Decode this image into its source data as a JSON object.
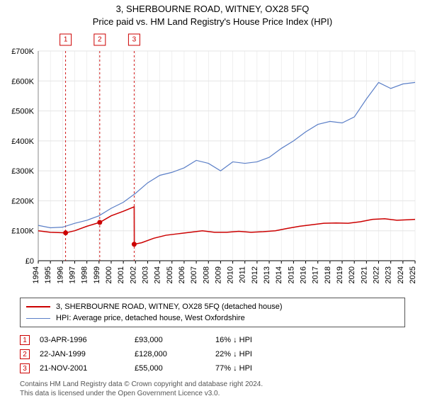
{
  "title": {
    "line1": "3, SHERBOURNE ROAD, WITNEY, OX28 5FQ",
    "line2": "Price paid vs. HM Land Registry's House Price Index (HPI)"
  },
  "chart": {
    "type": "line",
    "background_color": "#ffffff",
    "grid_color": "#e5e5e5",
    "axis_color": "#000000",
    "ylim": [
      0,
      700000
    ],
    "ytick_step": 100000,
    "ytick_labels": [
      "£0",
      "£100K",
      "£200K",
      "£300K",
      "£400K",
      "£500K",
      "£600K",
      "£700K"
    ],
    "xlim": [
      1994,
      2025
    ],
    "xticks": [
      1994,
      1995,
      1996,
      1997,
      1998,
      1999,
      2000,
      2001,
      2002,
      2003,
      2004,
      2005,
      2006,
      2007,
      2008,
      2009,
      2010,
      2011,
      2012,
      2013,
      2014,
      2015,
      2016,
      2017,
      2018,
      2019,
      2020,
      2021,
      2022,
      2023,
      2024,
      2025
    ],
    "label_fontsize": 11,
    "series": [
      {
        "name": "3, SHERBOURNE ROAD, WITNEY, OX28 5FQ (detached house)",
        "color": "#cc0000",
        "line_width": 1.5,
        "points": [
          [
            1994.0,
            100000
          ],
          [
            1995.0,
            95000
          ],
          [
            1996.25,
            93000
          ],
          [
            1997.0,
            100000
          ],
          [
            1998.0,
            115000
          ],
          [
            1999.06,
            128000
          ],
          [
            2000.0,
            150000
          ],
          [
            2001.0,
            165000
          ],
          [
            2001.89,
            180000
          ],
          [
            2001.9,
            55000
          ],
          [
            2002.5,
            60000
          ],
          [
            2003.5,
            75000
          ],
          [
            2004.5,
            85000
          ],
          [
            2005.5,
            90000
          ],
          [
            2006.5,
            95000
          ],
          [
            2007.5,
            100000
          ],
          [
            2008.5,
            95000
          ],
          [
            2009.5,
            95000
          ],
          [
            2010.5,
            98000
          ],
          [
            2011.5,
            95000
          ],
          [
            2012.5,
            97000
          ],
          [
            2013.5,
            100000
          ],
          [
            2014.5,
            108000
          ],
          [
            2015.5,
            115000
          ],
          [
            2016.5,
            120000
          ],
          [
            2017.5,
            125000
          ],
          [
            2018.5,
            126000
          ],
          [
            2019.5,
            125000
          ],
          [
            2020.5,
            130000
          ],
          [
            2021.5,
            138000
          ],
          [
            2022.5,
            140000
          ],
          [
            2023.5,
            135000
          ],
          [
            2024.5,
            137000
          ],
          [
            2025.0,
            138000
          ]
        ]
      },
      {
        "name": "HPI: Average price, detached house, West Oxfordshire",
        "color": "#5b7fc7",
        "line_width": 1.2,
        "points": [
          [
            1994.0,
            118000
          ],
          [
            1995.0,
            110000
          ],
          [
            1996.0,
            112000
          ],
          [
            1997.0,
            125000
          ],
          [
            1998.0,
            135000
          ],
          [
            1999.0,
            150000
          ],
          [
            2000.0,
            175000
          ],
          [
            2001.0,
            195000
          ],
          [
            2002.0,
            225000
          ],
          [
            2003.0,
            260000
          ],
          [
            2004.0,
            285000
          ],
          [
            2005.0,
            295000
          ],
          [
            2006.0,
            310000
          ],
          [
            2007.0,
            335000
          ],
          [
            2008.0,
            325000
          ],
          [
            2009.0,
            300000
          ],
          [
            2010.0,
            330000
          ],
          [
            2011.0,
            325000
          ],
          [
            2012.0,
            330000
          ],
          [
            2013.0,
            345000
          ],
          [
            2014.0,
            375000
          ],
          [
            2015.0,
            400000
          ],
          [
            2016.0,
            430000
          ],
          [
            2017.0,
            455000
          ],
          [
            2018.0,
            465000
          ],
          [
            2019.0,
            460000
          ],
          [
            2020.0,
            480000
          ],
          [
            2021.0,
            540000
          ],
          [
            2022.0,
            595000
          ],
          [
            2023.0,
            575000
          ],
          [
            2024.0,
            590000
          ],
          [
            2025.0,
            595000
          ]
        ]
      }
    ],
    "event_markers": [
      {
        "label": "1",
        "x": 1996.25,
        "y": 93000,
        "line_color": "#cc0000",
        "dash": "3,3"
      },
      {
        "label": "2",
        "x": 1999.06,
        "y": 128000,
        "line_color": "#cc0000",
        "dash": "3,3"
      },
      {
        "label": "3",
        "x": 2001.89,
        "y": 55000,
        "line_color": "#cc0000",
        "dash": "3,3"
      }
    ]
  },
  "legend": {
    "items": [
      {
        "color": "#cc0000",
        "width": 2,
        "label": "3, SHERBOURNE ROAD, WITNEY, OX28 5FQ (detached house)"
      },
      {
        "color": "#5b7fc7",
        "width": 1.5,
        "label": "HPI: Average price, detached house, West Oxfordshire"
      }
    ]
  },
  "events": [
    {
      "n": "1",
      "date": "03-APR-1996",
      "price": "£93,000",
      "diff": "16% ↓ HPI"
    },
    {
      "n": "2",
      "date": "22-JAN-1999",
      "price": "£128,000",
      "diff": "22% ↓ HPI"
    },
    {
      "n": "3",
      "date": "21-NOV-2001",
      "price": "£55,000",
      "diff": "77% ↓ HPI"
    }
  ],
  "footer": {
    "line1": "Contains HM Land Registry data © Crown copyright and database right 2024.",
    "line2": "This data is licensed under the Open Government Licence v3.0."
  }
}
